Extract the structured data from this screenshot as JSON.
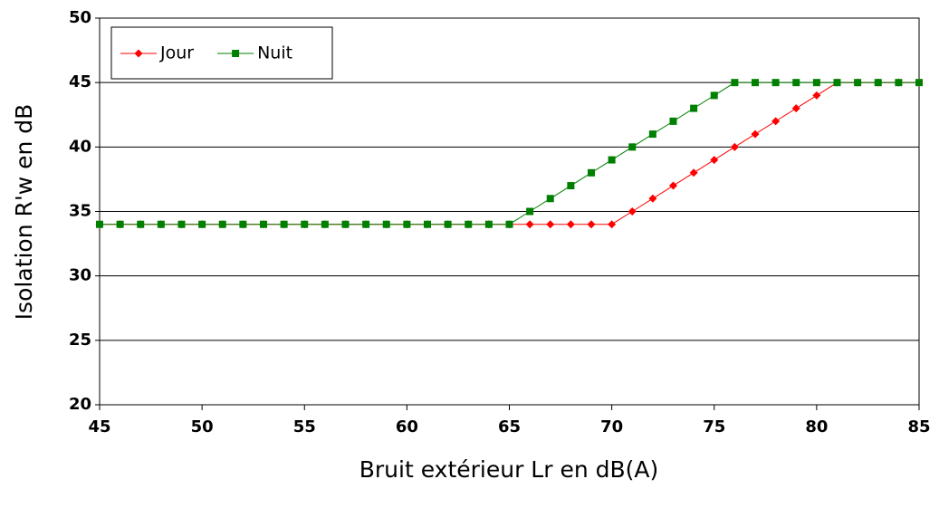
{
  "chart_data": {
    "type": "line",
    "xlabel": "Bruit extérieur Lr en dB(A)",
    "ylabel": "Isolation R'w en dB",
    "x": [
      45,
      46,
      47,
      48,
      49,
      50,
      51,
      52,
      53,
      54,
      55,
      56,
      57,
      58,
      59,
      60,
      61,
      62,
      63,
      64,
      65,
      66,
      67,
      68,
      69,
      70,
      71,
      72,
      73,
      74,
      75,
      76,
      77,
      78,
      79,
      80,
      81,
      82,
      83,
      84,
      85
    ],
    "series": [
      {
        "name": "Jour",
        "color": "#ff0000",
        "marker": "diamond",
        "values": [
          34,
          34,
          34,
          34,
          34,
          34,
          34,
          34,
          34,
          34,
          34,
          34,
          34,
          34,
          34,
          34,
          34,
          34,
          34,
          34,
          34,
          34,
          34,
          34,
          34,
          34,
          35,
          36,
          37,
          38,
          39,
          40,
          41,
          42,
          43,
          44,
          45,
          45,
          45,
          45,
          45
        ]
      },
      {
        "name": "Nuit",
        "color": "#008000",
        "marker": "square",
        "values": [
          34,
          34,
          34,
          34,
          34,
          34,
          34,
          34,
          34,
          34,
          34,
          34,
          34,
          34,
          34,
          34,
          34,
          34,
          34,
          34,
          34,
          35,
          36,
          37,
          38,
          39,
          40,
          41,
          42,
          43,
          44,
          45,
          45,
          45,
          45,
          45,
          45,
          45,
          45,
          45,
          45
        ]
      }
    ],
    "xlim": [
      45,
      85
    ],
    "xticks": [
      45,
      50,
      55,
      60,
      65,
      70,
      75,
      80,
      85
    ],
    "ylim": [
      20,
      50
    ],
    "yticks": [
      20,
      25,
      30,
      35,
      40,
      45,
      50
    ],
    "grid": true,
    "legend": "upper left"
  }
}
